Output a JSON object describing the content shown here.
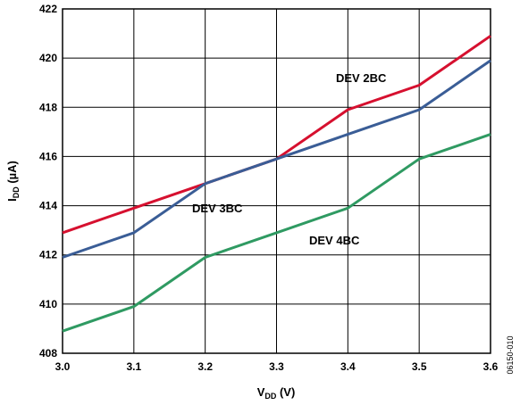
{
  "chart_data": {
    "type": "line",
    "x": [
      3.0,
      3.1,
      3.2,
      3.3,
      3.4,
      3.5,
      3.6
    ],
    "x_tick_labels": [
      "3.0",
      "3.1",
      "3.2",
      "3.3",
      "3.4",
      "3.5",
      "3.6"
    ],
    "y_tick_values": [
      408,
      410,
      412,
      414,
      416,
      418,
      420,
      422
    ],
    "y_tick_labels": [
      "408",
      "410",
      "412",
      "414",
      "416",
      "418",
      "420",
      "422"
    ],
    "xlim": [
      3.0,
      3.6
    ],
    "ylim": [
      408,
      422
    ],
    "grid": true,
    "xlabel": {
      "main": "V",
      "sub": "DD",
      "rest": " (V)"
    },
    "ylabel": {
      "main": "I",
      "sub": "DD",
      "rest": " (µA)"
    },
    "series": [
      {
        "name": "DEV 2BC",
        "color": "#d6102f",
        "values": [
          412.9,
          413.9,
          414.9,
          415.9,
          417.9,
          418.9,
          420.9
        ]
      },
      {
        "name": "DEV 3BC",
        "color": "#3a5d96",
        "values": [
          411.9,
          412.9,
          414.9,
          415.9,
          416.9,
          417.9,
          419.9
        ]
      },
      {
        "name": "DEV 4BC",
        "color": "#2f9a62",
        "values": [
          408.9,
          409.9,
          411.9,
          412.9,
          413.9,
          415.9,
          416.9
        ]
      }
    ],
    "annotations": [
      "DEV 2BC",
      "DEV 3BC",
      "DEV 4BC"
    ],
    "figure_id": "06150-010"
  }
}
